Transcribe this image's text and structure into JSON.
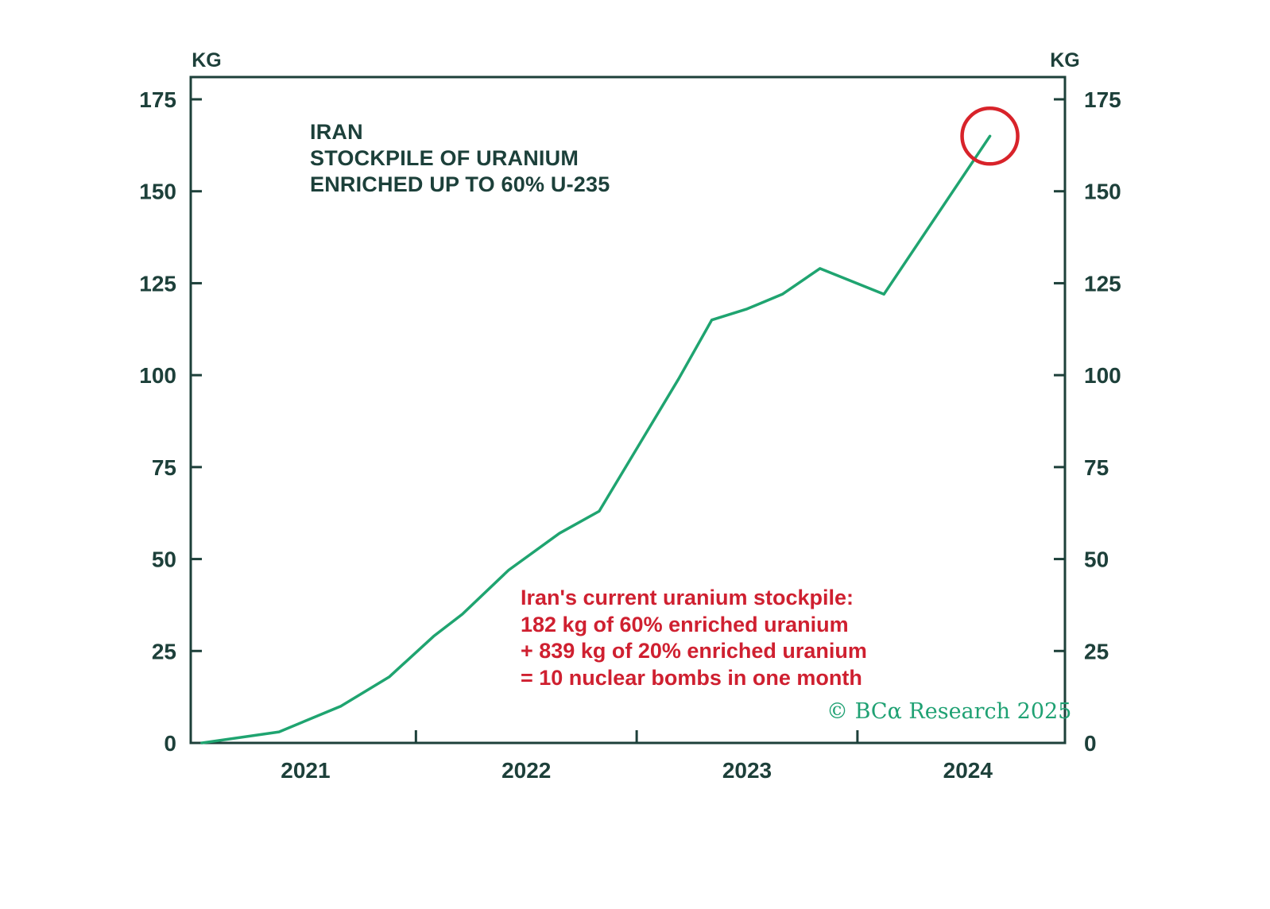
{
  "chart_data": {
    "type": "line",
    "title_lines": [
      "IRAN",
      "STOCKPILE OF URANIUM",
      "ENRICHED UP TO 60% U-235"
    ],
    "unit_label_left": "KG",
    "unit_label_right": "KG",
    "ylim": [
      0,
      175
    ],
    "yticks": [
      0,
      25,
      50,
      75,
      100,
      125,
      150,
      175
    ],
    "xlim": [
      2020.48,
      2024.44
    ],
    "xtick_positions": [
      2021,
      2022,
      2023,
      2024
    ],
    "xtick_labels": [
      "2021",
      "2022",
      "2023",
      "2024"
    ],
    "x_minor_ticks": [
      2021.5,
      2022.5,
      2023.5
    ],
    "grid": false,
    "legend": "none",
    "axis_color": "#1d403a",
    "series": [
      {
        "name": "Iran stockpile of uranium enriched up to 60% U-235 (KG)",
        "color": "#1fa470",
        "x": [
          2020.53,
          2020.88,
          2021.16,
          2021.38,
          2021.58,
          2021.71,
          2021.92,
          2022.15,
          2022.33,
          2022.55,
          2022.69,
          2022.84,
          2023.0,
          2023.16,
          2023.33,
          2023.62,
          2024.1
        ],
        "y": [
          0,
          3,
          10,
          18,
          29,
          35,
          47,
          57,
          63,
          85,
          99,
          115,
          118,
          122,
          129,
          122,
          165
        ]
      }
    ],
    "highlight_circle": {
      "x": 2024.1,
      "y": 165,
      "radius_px": 35,
      "color": "#d8232a"
    },
    "annotation_lines": [
      "Iran's current uranium stockpile:",
      "182 kg of 60% enriched uranium",
      "+ 839 kg of 20% enriched uranium",
      "= 10 nuclear bombs in one month"
    ],
    "annotation_color": "#cf2030",
    "copyright": "© BCα Research 2025",
    "copyright_color": "#1fa173"
  }
}
